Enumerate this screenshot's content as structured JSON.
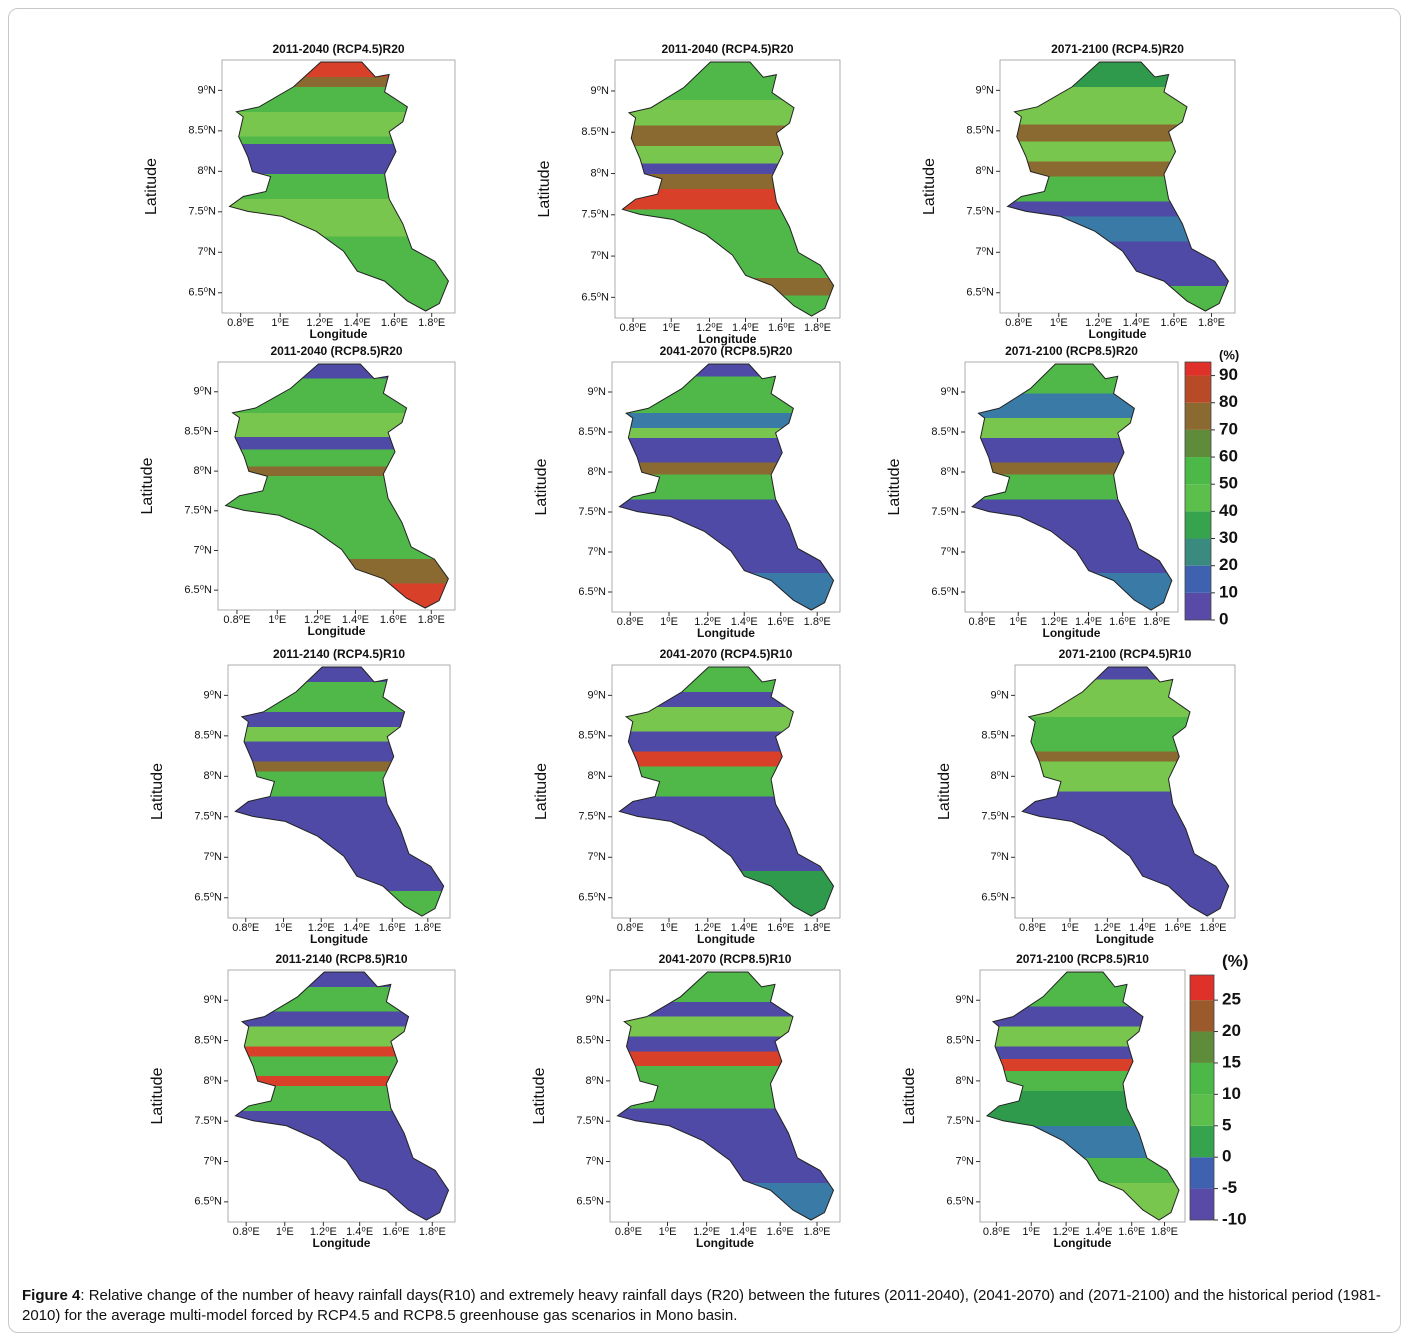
{
  "axes": {
    "x_label": "Longitude",
    "y_label": "Latitude",
    "xticks": [
      "0.8⁰E",
      "1⁰E",
      "1.2⁰E",
      "1.4⁰E",
      "1.6⁰E",
      "1.8⁰E"
    ],
    "yticks": [
      "9⁰N",
      "8.5⁰N",
      "8⁰N",
      "7.5⁰N",
      "7⁰N",
      "6.5⁰N"
    ]
  },
  "panels": [
    {
      "title": "2011-2040 (RCP4.5)R20"
    },
    {
      "title": "2011-2040 (RCP4.5)R20"
    },
    {
      "title": "2071-2100 (RCP4.5)R20"
    },
    {
      "title": "2011-2040 (RCP8.5)R20"
    },
    {
      "title": "2041-2070 (RCP8.5)R20"
    },
    {
      "title": "2071-2100 (RCP8.5)R20"
    },
    {
      "title": "2011-2140 (RCP4.5)R10"
    },
    {
      "title": "2041-2070 (RCP4.5)R10"
    },
    {
      "title": "2071-2100 (RCP4.5)R10"
    },
    {
      "title": "2011-2140 (RCP8.5)R10"
    },
    {
      "title": "2041-2070 (RCP8.5)R10"
    },
    {
      "title": "2071-2100 (RCP8.5)R10"
    }
  ],
  "colorbars": [
    {
      "unit": "(%)",
      "lim": [
        0,
        95
      ],
      "ticks": [
        0,
        10,
        20,
        30,
        40,
        50,
        60,
        70,
        80,
        90
      ],
      "colors": [
        "#5a4aa8",
        "#3f62b0",
        "#3a8a80",
        "#36a44c",
        "#5cbf4c",
        "#4cb848",
        "#5e8c3a",
        "#8a6a30",
        "#b84a28",
        "#e0302a"
      ]
    },
    {
      "unit": "(%)",
      "lim": [
        -10,
        29
      ],
      "ticks": [
        -10,
        -5,
        0,
        5,
        10,
        15,
        20,
        25
      ],
      "colors": [
        "#5a4aa8",
        "#3f62b0",
        "#36a44c",
        "#5cbf4c",
        "#4cb848",
        "#5e8c3a",
        "#9a5a2c",
        "#e0302a"
      ]
    }
  ],
  "caption": {
    "label": "Figure 4",
    "text": ": Relative change of the number of heavy rainfall days(R10) and extremely heavy rainfall days (R20) between the futures (2011-2040), (2041-2070) and (2071-2100) and the historical period (1981-2010) for the average multi-model forced by RCP4.5 and RCP8.5 greenhouse gas scenarios in Mono basin."
  }
}
